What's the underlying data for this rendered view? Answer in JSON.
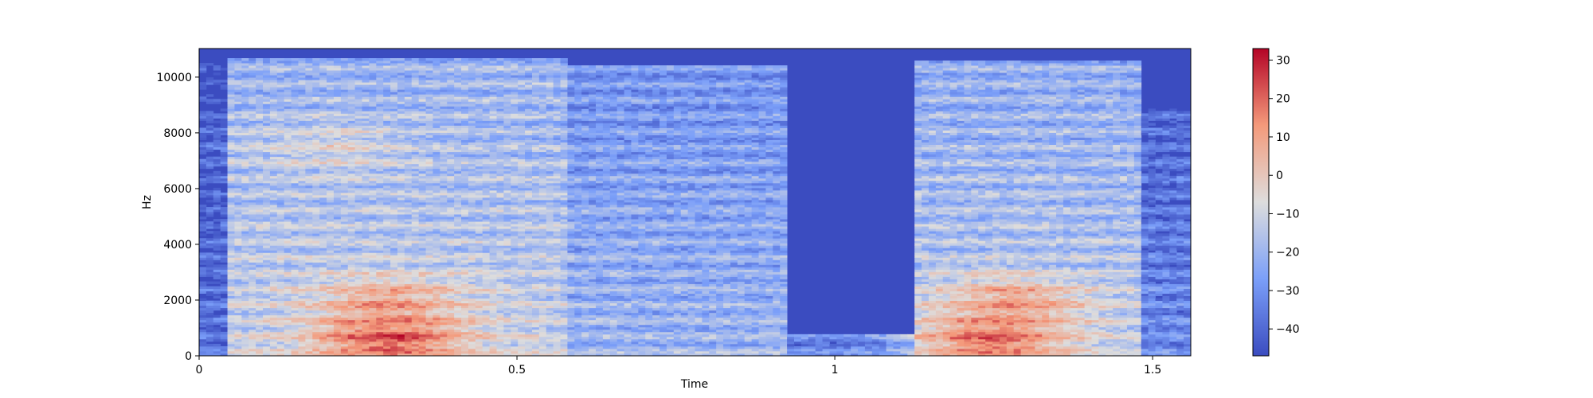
{
  "chart_data": {
    "type": "heatmap",
    "title": "",
    "xlabel": "Time",
    "ylabel": "Hz",
    "xlim": [
      0,
      1.56
    ],
    "ylim": [
      0,
      11025
    ],
    "x_ticks": [
      {
        "value": 0,
        "label": "0"
      },
      {
        "value": 0.5,
        "label": "0.5"
      },
      {
        "value": 1,
        "label": "1"
      },
      {
        "value": 1.5,
        "label": "1.5"
      }
    ],
    "y_ticks": [
      {
        "value": 0,
        "label": "0"
      },
      {
        "value": 2000,
        "label": "2000"
      },
      {
        "value": 4000,
        "label": "4000"
      },
      {
        "value": 6000,
        "label": "6000"
      },
      {
        "value": 8000,
        "label": "8000"
      },
      {
        "value": 10000,
        "label": "10000"
      }
    ],
    "colorbar": {
      "colormap": "coolwarm",
      "range": [
        -47,
        33
      ],
      "ticks": [
        {
          "value": 30,
          "label": "30"
        },
        {
          "value": 20,
          "label": "20"
        },
        {
          "value": 10,
          "label": "10"
        },
        {
          "value": 0,
          "label": "0"
        },
        {
          "value": -10,
          "label": "−10"
        },
        {
          "value": -20,
          "label": "−20"
        },
        {
          "value": -30,
          "label": "−30"
        },
        {
          "value": -40,
          "label": "−40"
        }
      ]
    },
    "segments": [
      {
        "t0": 0.0,
        "t1": 0.05,
        "max_hz": 10500,
        "level": -42
      },
      {
        "t0": 0.05,
        "t1": 0.58,
        "max_hz": 10700,
        "level": -16
      },
      {
        "t0": 0.58,
        "t1": 0.93,
        "max_hz": 10400,
        "level": -25
      },
      {
        "t0": 0.93,
        "t1": 1.13,
        "max_hz": 800,
        "level": -38
      },
      {
        "t0": 1.13,
        "t1": 1.48,
        "max_hz": 10600,
        "level": -18
      },
      {
        "t0": 1.48,
        "t1": 1.56,
        "max_hz": 9000,
        "level": -37
      }
    ],
    "hotspots": [
      {
        "t": 0.3,
        "hz": 2000,
        "level": 12
      },
      {
        "t": 0.3,
        "hz": 600,
        "level": 28
      },
      {
        "t": 0.2,
        "hz": 7500,
        "level": -5
      },
      {
        "t": 1.28,
        "hz": 2000,
        "level": 14
      },
      {
        "t": 1.25,
        "hz": 600,
        "level": 25
      }
    ]
  }
}
